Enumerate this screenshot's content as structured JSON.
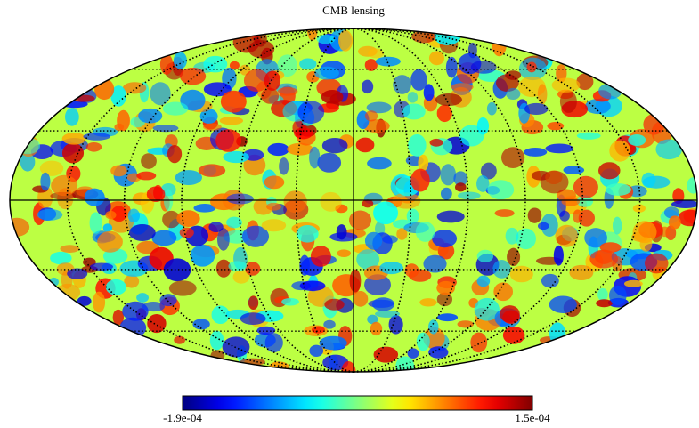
{
  "chart_data": {
    "type": "mollweide",
    "title": "CMB lensing",
    "colormap": "jet",
    "clim": [
      -0.00019,
      0.00015
    ],
    "cticks": [
      {
        "value": -0.00019,
        "label": "-1.9e-04"
      },
      {
        "value": 0.00015,
        "label": "1.5e-04"
      }
    ],
    "graticule": true
  }
}
